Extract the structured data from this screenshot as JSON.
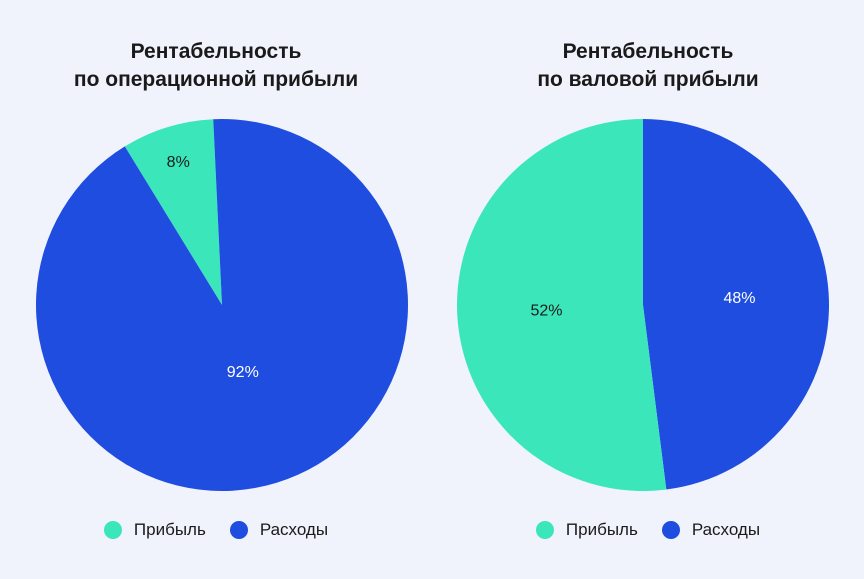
{
  "colors": {
    "profit": "#3ce6bb",
    "expenses": "#1e4ddf"
  },
  "chart_data": [
    {
      "type": "pie",
      "title_lines": [
        "Рентабельность",
        "по операционной прибыли"
      ],
      "slices": [
        {
          "name": "Прибыль",
          "value": 8,
          "label": "8%",
          "color": "#3ce6bb",
          "label_color": "#1a1a1a"
        },
        {
          "name": "Расходы",
          "value": 92,
          "label": "92%",
          "color": "#1e4ddf",
          "label_color": "#ffffff"
        }
      ],
      "legend": [
        "Прибыль",
        "Расходы"
      ],
      "legend_placement": "bottom"
    },
    {
      "type": "pie",
      "title_lines": [
        "Рентабельность",
        "по валовой прибыли"
      ],
      "slices": [
        {
          "name": "Расходы",
          "value": 48,
          "label": "48%",
          "color": "#1e4ddf",
          "label_color": "#ffffff"
        },
        {
          "name": "Прибыль",
          "value": 52,
          "label": "52%",
          "color": "#3ce6bb",
          "label_color": "#1a1a1a"
        }
      ],
      "legend": [
        "Прибыль",
        "Расходы"
      ],
      "legend_placement": "bottom"
    }
  ]
}
